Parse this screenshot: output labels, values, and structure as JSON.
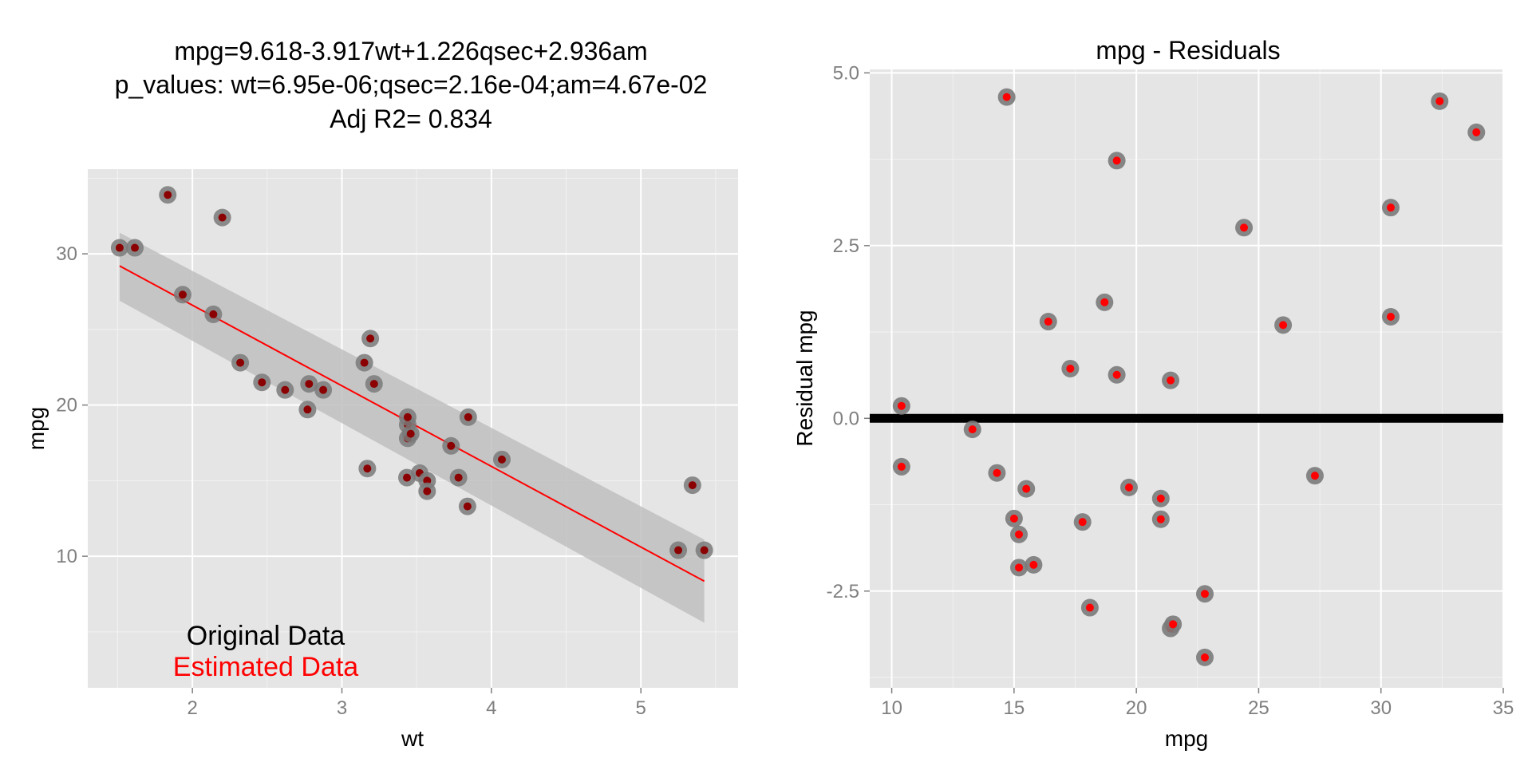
{
  "chart_data": [
    {
      "type": "scatter",
      "title_lines": [
        "mpg=9.618-3.917wt+1.226qsec+2.936am",
        "p_values: wt=6.95e-06;qsec=2.16e-04;am=4.67e-02",
        "Adj R2= 0.834"
      ],
      "xlabel": "wt",
      "ylabel": "mpg",
      "xlim": [
        1.3,
        5.65
      ],
      "ylim": [
        1.3,
        35.6
      ],
      "xticks": [
        2,
        3,
        4,
        5
      ],
      "yticks": [
        10,
        20,
        30
      ],
      "grid": true,
      "legend": [
        "Original Data",
        "Estimated Data"
      ],
      "legend_placement": "bottom-left",
      "colors": {
        "original": "#8B0000",
        "estimated": "#FF0000",
        "point_halo": "#7A7A7A",
        "band": "#BFBFBF",
        "panel": "#E5E5E5",
        "grid": "#FFFFFF"
      },
      "fit_line": {
        "x": [
          1.513,
          5.424
        ],
        "y": [
          29.2,
          8.35
        ]
      },
      "confidence_band": {
        "x": [
          1.513,
          5.424
        ],
        "upper": [
          31.4,
          11.1
        ],
        "lower": [
          26.9,
          5.6
        ]
      },
      "points": [
        [
          1.513,
          30.4
        ],
        [
          1.615,
          30.4
        ],
        [
          1.835,
          33.9
        ],
        [
          1.935,
          27.3
        ],
        [
          2.14,
          26.0
        ],
        [
          2.2,
          32.4
        ],
        [
          2.32,
          22.8
        ],
        [
          2.465,
          21.5
        ],
        [
          2.62,
          21.0
        ],
        [
          2.77,
          19.7
        ],
        [
          2.78,
          21.4
        ],
        [
          2.875,
          21.0
        ],
        [
          3.15,
          22.8
        ],
        [
          3.17,
          15.8
        ],
        [
          3.19,
          24.4
        ],
        [
          3.215,
          21.4
        ],
        [
          3.435,
          15.2
        ],
        [
          3.44,
          18.7
        ],
        [
          3.44,
          17.8
        ],
        [
          3.44,
          19.2
        ],
        [
          3.46,
          18.1
        ],
        [
          3.52,
          15.5
        ],
        [
          3.57,
          15.0
        ],
        [
          3.57,
          14.3
        ],
        [
          3.73,
          17.3
        ],
        [
          3.78,
          15.2
        ],
        [
          3.84,
          13.3
        ],
        [
          3.845,
          19.2
        ],
        [
          4.07,
          16.4
        ],
        [
          5.25,
          10.4
        ],
        [
          5.345,
          14.7
        ],
        [
          5.424,
          10.4
        ]
      ]
    },
    {
      "type": "scatter",
      "title": "mpg - Residuals",
      "xlabel": "mpg",
      "ylabel": "Residual mpg",
      "xlim": [
        9.1,
        35.0
      ],
      "ylim": [
        -3.9,
        5.05
      ],
      "xticks": [
        10,
        15,
        20,
        25,
        30,
        35
      ],
      "yticks": [
        -2.5,
        0.0,
        2.5,
        5.0
      ],
      "ytick_labels": [
        "-2.5",
        "0.0",
        "2.5",
        "5.0"
      ],
      "grid": true,
      "reference_line_y": 0,
      "colors": {
        "point": "#FF0000",
        "point_halo": "#7A7A7A",
        "reference_line": "#000000",
        "panel": "#E5E5E5",
        "grid": "#FFFFFF"
      },
      "points": [
        [
          10.4,
          0.18
        ],
        [
          10.4,
          -0.7
        ],
        [
          13.3,
          -0.16
        ],
        [
          14.3,
          -0.79
        ],
        [
          14.7,
          4.65
        ],
        [
          15.0,
          -1.45
        ],
        [
          15.2,
          -1.68
        ],
        [
          15.2,
          -2.16
        ],
        [
          15.5,
          -1.02
        ],
        [
          15.8,
          -2.12
        ],
        [
          16.4,
          1.4
        ],
        [
          17.3,
          0.72
        ],
        [
          17.8,
          -1.5
        ],
        [
          18.1,
          -2.74
        ],
        [
          18.7,
          1.68
        ],
        [
          19.2,
          3.73
        ],
        [
          19.2,
          0.63
        ],
        [
          19.7,
          -1.0
        ],
        [
          21.0,
          -1.16
        ],
        [
          21.0,
          -1.46
        ],
        [
          21.4,
          0.55
        ],
        [
          21.4,
          -3.04
        ],
        [
          21.5,
          -2.98
        ],
        [
          22.8,
          -2.54
        ],
        [
          22.8,
          -3.46
        ],
        [
          24.4,
          2.76
        ],
        [
          26.0,
          1.35
        ],
        [
          27.3,
          -0.83
        ],
        [
          30.4,
          3.05
        ],
        [
          30.4,
          1.47
        ],
        [
          32.4,
          4.59
        ],
        [
          33.9,
          4.14
        ]
      ]
    }
  ]
}
